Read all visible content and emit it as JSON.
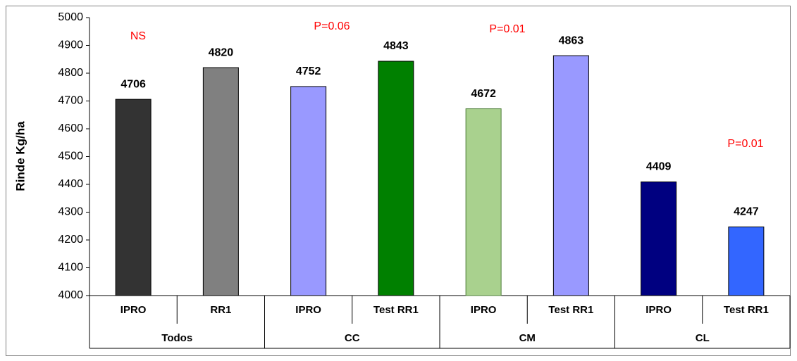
{
  "chart_data": {
    "type": "bar",
    "y_label": "Rinde Kg/ha",
    "categories": [
      "IPRO",
      "RR1",
      "IPRO",
      "Test RR1",
      "IPRO",
      "Test RR1",
      "IPRO",
      "Test RR1"
    ],
    "groups": [
      "Todos",
      "CC",
      "CM",
      "CL"
    ],
    "values": [
      4706,
      4820,
      4752,
      4843,
      4672,
      4863,
      4409,
      4247
    ],
    "colors": [
      "#333333",
      "#808080",
      "#9999ff",
      "#008000",
      "#a9d18e",
      "#9999ff",
      "#000080",
      "#3366ff"
    ],
    "edge_colors": [
      "#000000",
      "#000000",
      "#000000",
      "#000000",
      "#4f7f3a",
      "#000000",
      "#000000",
      "#000000"
    ],
    "annotations": [
      "NS",
      "P=0.06",
      "P=0.01",
      "P=0.01"
    ],
    "ylim": [
      4000,
      5000
    ],
    "yticks": [
      4000,
      4100,
      4200,
      4300,
      4400,
      4500,
      4600,
      4700,
      4800,
      4900,
      5000
    ],
    "grid": false
  }
}
